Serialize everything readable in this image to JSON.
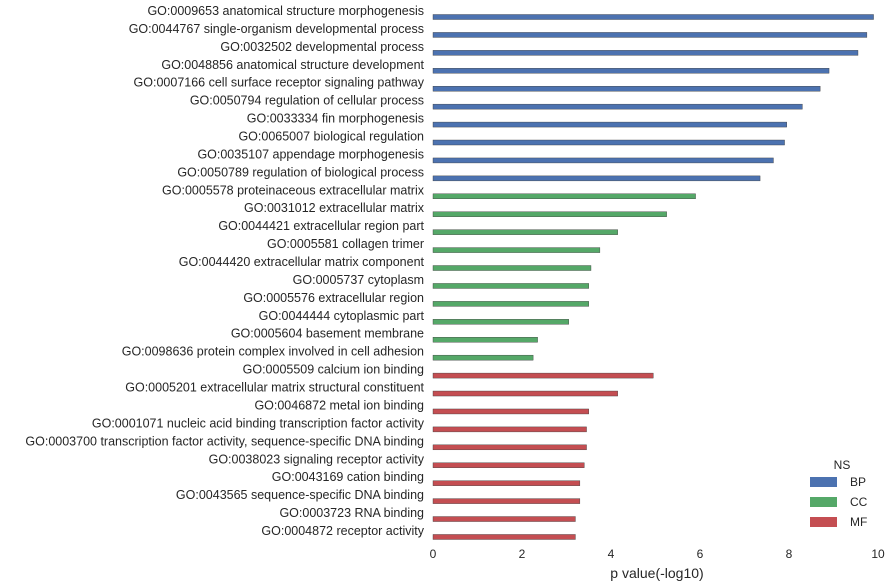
{
  "chart_data": {
    "type": "bar",
    "orientation": "horizontal",
    "xlabel": "p value(-log10)",
    "xlim": [
      0,
      10
    ],
    "xticks": [
      0,
      2,
      4,
      6,
      8,
      10
    ],
    "grid": false,
    "legend": {
      "title": "NS",
      "placement": "bottom-right",
      "entries": [
        {
          "name": "BP",
          "color": "#4c72b0"
        },
        {
          "name": "CC",
          "color": "#55a868"
        },
        {
          "name": "MF",
          "color": "#c44e52"
        }
      ]
    },
    "categories": [
      "GO:0009653 anatomical structure morphogenesis",
      "GO:0044767 single-organism developmental process",
      "GO:0032502 developmental process",
      "GO:0048856 anatomical structure development",
      "GO:0007166 cell surface receptor signaling pathway",
      "GO:0050794 regulation of cellular process",
      "GO:0033334 fin morphogenesis",
      "GO:0065007 biological regulation",
      "GO:0035107 appendage morphogenesis",
      "GO:0050789 regulation of biological process",
      "GO:0005578 proteinaceous extracellular matrix",
      "GO:0031012 extracellular matrix",
      "GO:0044421 extracellular region part",
      "GO:0005581 collagen trimer",
      "GO:0044420 extracellular matrix component",
      "GO:0005737 cytoplasm",
      "GO:0005576 extracellular region",
      "GO:0044444 cytoplasmic part",
      "GO:0005604 basement membrane",
      "GO:0098636 protein complex involved in cell adhesion",
      "GO:0005509 calcium ion binding",
      "GO:0005201 extracellular matrix structural constituent",
      "GO:0046872 metal ion binding",
      "GO:0001071 nucleic acid binding transcription factor activity",
      "GO:0003700 transcription factor activity, sequence-specific DNA binding",
      "GO:0038023 signaling receptor activity",
      "GO:0043169 cation binding",
      "GO:0043565 sequence-specific DNA binding",
      "GO:0003723 RNA binding",
      "GO:0004872 receptor activity"
    ],
    "values": [
      9.9,
      9.75,
      9.55,
      8.9,
      8.7,
      8.3,
      7.95,
      7.9,
      7.65,
      7.35,
      5.9,
      5.25,
      4.15,
      3.75,
      3.55,
      3.5,
      3.5,
      3.05,
      2.35,
      2.25,
      4.95,
      4.15,
      3.5,
      3.45,
      3.45,
      3.4,
      3.3,
      3.3,
      3.2,
      3.2
    ],
    "groups": [
      "BP",
      "BP",
      "BP",
      "BP",
      "BP",
      "BP",
      "BP",
      "BP",
      "BP",
      "BP",
      "CC",
      "CC",
      "CC",
      "CC",
      "CC",
      "CC",
      "CC",
      "CC",
      "CC",
      "CC",
      "MF",
      "MF",
      "MF",
      "MF",
      "MF",
      "MF",
      "MF",
      "MF",
      "MF",
      "MF"
    ]
  }
}
